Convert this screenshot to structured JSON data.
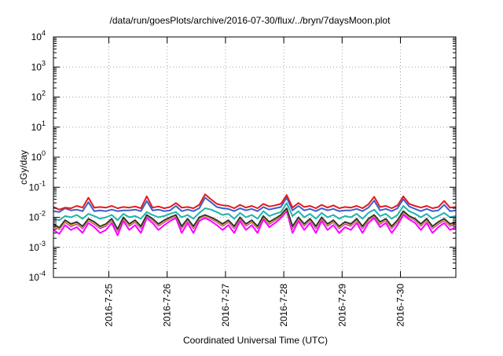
{
  "chart_data": {
    "type": "line",
    "title": "/data/run/goesPlots/archive/2016-07-30/flux/../bryn/7daysMoon.plot",
    "xlabel": "Coordinated Universal Time (UTC)",
    "ylabel": "cGy/day",
    "yscale": "log",
    "ylim": [
      0.0001,
      10000
    ],
    "y_ticks": [
      {
        "base": "10",
        "exp": "-4"
      },
      {
        "base": "10",
        "exp": "-3"
      },
      {
        "base": "10",
        "exp": "-2"
      },
      {
        "base": "10",
        "exp": "-1"
      },
      {
        "base": "10",
        "exp": "0"
      },
      {
        "base": "10",
        "exp": "1"
      },
      {
        "base": "10",
        "exp": "2"
      },
      {
        "base": "10",
        "exp": "3"
      },
      {
        "base": "10",
        "exp": "4"
      }
    ],
    "x_ticks": [
      "2016-7-25",
      "2016-7-26",
      "2016-7-27",
      "2016-7-28",
      "2016-7-29",
      "2016-7-30"
    ],
    "xlim_days": [
      24.05,
      30.95
    ],
    "grid": true,
    "colors": [
      "#e41a1c",
      "#3a5fcd",
      "#20b2aa",
      "#333333",
      "#f0e020",
      "#c020c0",
      "#ff00ff"
    ],
    "x": [
      24.05,
      24.15,
      24.25,
      24.35,
      24.45,
      24.55,
      24.65,
      24.75,
      24.85,
      24.95,
      25.05,
      25.15,
      25.25,
      25.35,
      25.45,
      25.55,
      25.65,
      25.75,
      25.85,
      25.95,
      26.05,
      26.15,
      26.25,
      26.35,
      26.45,
      26.55,
      26.65,
      26.75,
      26.85,
      26.95,
      27.05,
      27.15,
      27.25,
      27.35,
      27.45,
      27.55,
      27.65,
      27.75,
      27.85,
      27.95,
      28.05,
      28.15,
      28.25,
      28.35,
      28.45,
      28.55,
      28.65,
      28.75,
      28.85,
      28.95,
      29.05,
      29.15,
      29.25,
      29.35,
      29.45,
      29.55,
      29.65,
      29.75,
      29.85,
      29.95,
      30.05,
      30.15,
      30.25,
      30.35,
      30.45,
      30.55,
      30.65,
      30.75,
      30.85,
      30.95
    ],
    "series": [
      {
        "values": [
          0.022,
          0.018,
          0.021,
          0.02,
          0.024,
          0.021,
          0.045,
          0.021,
          0.022,
          0.021,
          0.024,
          0.02,
          0.022,
          0.021,
          0.023,
          0.02,
          0.05,
          0.021,
          0.023,
          0.02,
          0.022,
          0.03,
          0.021,
          0.022,
          0.02,
          0.026,
          0.058,
          0.04,
          0.028,
          0.025,
          0.024,
          0.02,
          0.026,
          0.021,
          0.024,
          0.02,
          0.028,
          0.023,
          0.025,
          0.028,
          0.055,
          0.021,
          0.03,
          0.022,
          0.024,
          0.02,
          0.026,
          0.021,
          0.025,
          0.02,
          0.022,
          0.021,
          0.024,
          0.02,
          0.027,
          0.048,
          0.022,
          0.024,
          0.02,
          0.025,
          0.05,
          0.028,
          0.024,
          0.021,
          0.024,
          0.02,
          0.022,
          0.035,
          0.021,
          0.022
        ]
      },
      {
        "values": [
          0.016,
          0.015,
          0.02,
          0.017,
          0.018,
          0.016,
          0.032,
          0.016,
          0.017,
          0.016,
          0.018,
          0.016,
          0.017,
          0.017,
          0.018,
          0.016,
          0.035,
          0.017,
          0.018,
          0.016,
          0.017,
          0.024,
          0.016,
          0.018,
          0.016,
          0.02,
          0.045,
          0.032,
          0.022,
          0.02,
          0.019,
          0.016,
          0.02,
          0.017,
          0.019,
          0.016,
          0.022,
          0.018,
          0.02,
          0.022,
          0.045,
          0.017,
          0.024,
          0.017,
          0.019,
          0.016,
          0.02,
          0.017,
          0.019,
          0.016,
          0.017,
          0.017,
          0.019,
          0.016,
          0.021,
          0.036,
          0.017,
          0.019,
          0.016,
          0.02,
          0.04,
          0.023,
          0.019,
          0.016,
          0.019,
          0.016,
          0.017,
          0.026,
          0.016,
          0.017
        ]
      },
      {
        "values": [
          0.009,
          0.008,
          0.011,
          0.01,
          0.012,
          0.009,
          0.013,
          0.011,
          0.009,
          0.01,
          0.012,
          0.008,
          0.013,
          0.01,
          0.011,
          0.009,
          0.015,
          0.012,
          0.01,
          0.011,
          0.013,
          0.015,
          0.01,
          0.012,
          0.009,
          0.014,
          0.02,
          0.018,
          0.015,
          0.012,
          0.013,
          0.009,
          0.014,
          0.01,
          0.012,
          0.009,
          0.016,
          0.011,
          0.013,
          0.015,
          0.03,
          0.011,
          0.016,
          0.01,
          0.013,
          0.009,
          0.014,
          0.01,
          0.012,
          0.009,
          0.011,
          0.01,
          0.013,
          0.009,
          0.014,
          0.018,
          0.011,
          0.013,
          0.009,
          0.012,
          0.024,
          0.016,
          0.013,
          0.01,
          0.013,
          0.009,
          0.011,
          0.014,
          0.01,
          0.011
        ]
      },
      {
        "values": [
          0.006,
          0.0045,
          0.008,
          0.006,
          0.007,
          0.005,
          0.009,
          0.007,
          0.005,
          0.006,
          0.009,
          0.004,
          0.01,
          0.006,
          0.008,
          0.005,
          0.012,
          0.009,
          0.006,
          0.008,
          0.01,
          0.012,
          0.005,
          0.009,
          0.005,
          0.01,
          0.012,
          0.01,
          0.008,
          0.006,
          0.008,
          0.005,
          0.01,
          0.006,
          0.008,
          0.005,
          0.011,
          0.007,
          0.009,
          0.012,
          0.02,
          0.005,
          0.01,
          0.006,
          0.009,
          0.005,
          0.01,
          0.006,
          0.008,
          0.005,
          0.007,
          0.006,
          0.009,
          0.005,
          0.009,
          0.012,
          0.007,
          0.009,
          0.005,
          0.008,
          0.016,
          0.011,
          0.009,
          0.006,
          0.009,
          0.005,
          0.007,
          0.009,
          0.006,
          0.007
        ]
      },
      {
        "values": [
          0.0055,
          0.0042,
          0.0075,
          0.0055,
          0.0065,
          0.0047,
          0.0085,
          0.0065,
          0.0047,
          0.0056,
          0.0085,
          0.0038,
          0.0095,
          0.0056,
          0.0075,
          0.0047,
          0.0115,
          0.0085,
          0.0056,
          0.0075,
          0.0095,
          0.0115,
          0.0047,
          0.0085,
          0.0047,
          0.0095,
          0.0115,
          0.0095,
          0.0075,
          0.0056,
          0.0075,
          0.0047,
          0.0095,
          0.0056,
          0.0075,
          0.0047,
          0.0105,
          0.0065,
          0.0085,
          0.0115,
          0.019,
          0.0047,
          0.0095,
          0.0056,
          0.0085,
          0.0047,
          0.0095,
          0.0056,
          0.0075,
          0.0047,
          0.0065,
          0.0056,
          0.0085,
          0.0047,
          0.0085,
          0.0115,
          0.0065,
          0.0085,
          0.0047,
          0.0075,
          0.015,
          0.0105,
          0.0085,
          0.0056,
          0.0085,
          0.0047,
          0.0065,
          0.0085,
          0.0056,
          0.0065
        ]
      },
      {
        "values": [
          0.005,
          0.004,
          0.007,
          0.005,
          0.006,
          0.0043,
          0.008,
          0.006,
          0.0043,
          0.0052,
          0.008,
          0.0035,
          0.009,
          0.0052,
          0.007,
          0.0043,
          0.011,
          0.008,
          0.0052,
          0.007,
          0.009,
          0.011,
          0.0043,
          0.008,
          0.0043,
          0.009,
          0.011,
          0.009,
          0.007,
          0.0052,
          0.007,
          0.0043,
          0.009,
          0.0052,
          0.007,
          0.0043,
          0.01,
          0.006,
          0.008,
          0.011,
          0.018,
          0.0043,
          0.009,
          0.0052,
          0.008,
          0.0043,
          0.009,
          0.0052,
          0.007,
          0.0043,
          0.006,
          0.0052,
          0.008,
          0.0043,
          0.008,
          0.011,
          0.006,
          0.008,
          0.0043,
          0.007,
          0.014,
          0.01,
          0.008,
          0.0052,
          0.008,
          0.0043,
          0.006,
          0.008,
          0.0052,
          0.006
        ]
      },
      {
        "values": [
          0.0038,
          0.0028,
          0.0055,
          0.0038,
          0.0047,
          0.003,
          0.0065,
          0.0047,
          0.003,
          0.0038,
          0.0065,
          0.0025,
          0.0075,
          0.0038,
          0.0055,
          0.003,
          0.0095,
          0.0065,
          0.0038,
          0.0055,
          0.0075,
          0.0095,
          0.003,
          0.0065,
          0.003,
          0.0075,
          0.0095,
          0.0075,
          0.0055,
          0.0038,
          0.0055,
          0.003,
          0.0075,
          0.0038,
          0.0055,
          0.003,
          0.0085,
          0.0047,
          0.0065,
          0.0095,
          0.016,
          0.003,
          0.0075,
          0.0038,
          0.0065,
          0.003,
          0.0075,
          0.0038,
          0.0055,
          0.003,
          0.0047,
          0.0038,
          0.0065,
          0.003,
          0.0065,
          0.0095,
          0.0047,
          0.0065,
          0.003,
          0.0055,
          0.012,
          0.0085,
          0.0065,
          0.0038,
          0.0065,
          0.003,
          0.0047,
          0.0065,
          0.0038,
          0.0047
        ]
      }
    ]
  }
}
